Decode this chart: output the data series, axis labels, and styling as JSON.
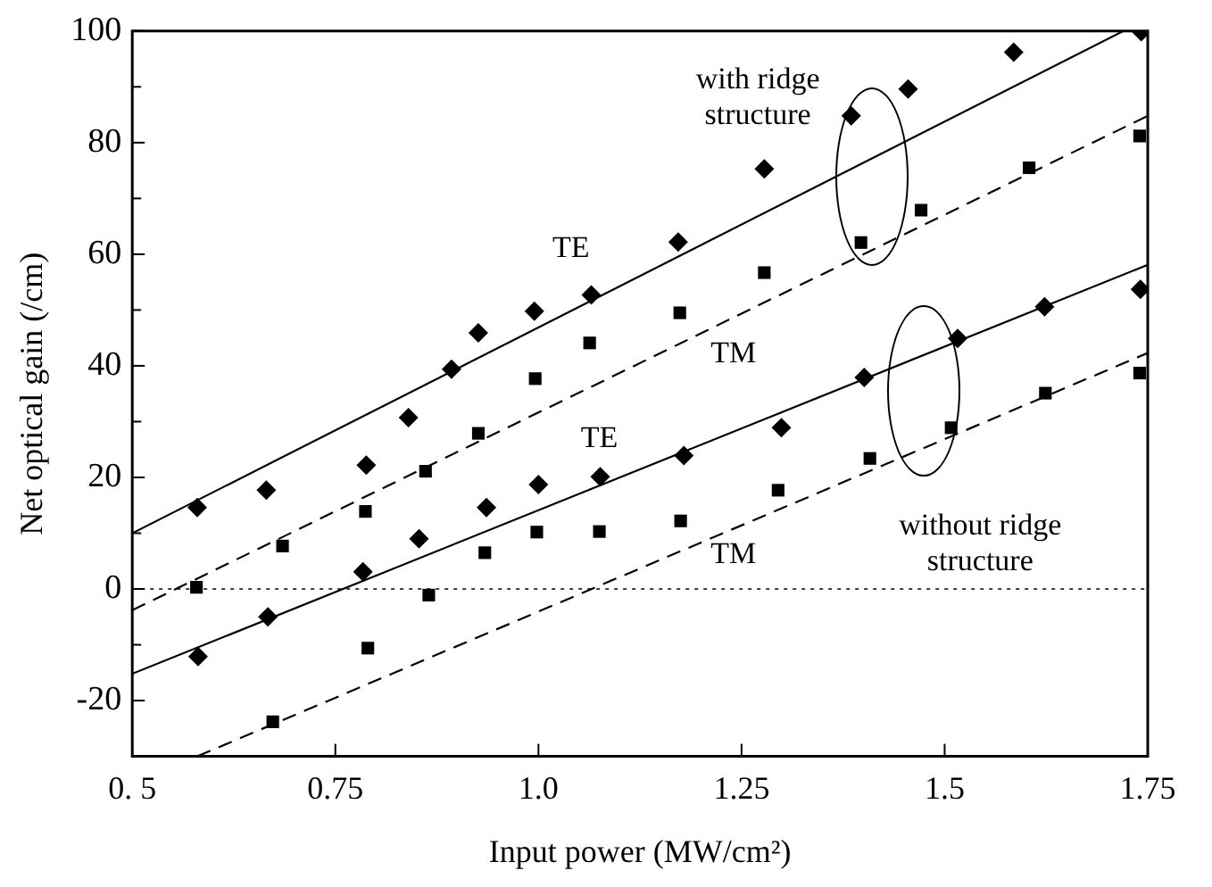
{
  "chart_data": {
    "type": "scatter",
    "xlabel": "Input power (MW/cm²)",
    "ylabel": "Net optical gain (/cm)",
    "xlim": [
      0.5,
      1.75
    ],
    "xticks": [
      {
        "value": 0.5,
        "label": "0. 5"
      },
      0.75,
      {
        "value": 1,
        "label": "1.0"
      },
      1.25,
      1.5,
      1.75
    ],
    "ylim": [
      -30,
      100
    ],
    "yticks": [
      -20,
      {
        "value": -10,
        "label": null
      },
      0,
      {
        "value": 10,
        "label": null
      },
      20,
      {
        "value": 30,
        "label": null
      },
      40,
      {
        "value": 50,
        "label": null
      },
      60,
      {
        "value": 70,
        "label": null
      },
      80,
      {
        "value": 90,
        "label": null
      },
      100
    ],
    "grid": false,
    "legend": false,
    "ref_lines": [
      {
        "axis": "y",
        "value": 0,
        "line_style": "dotted",
        "color": "#000000"
      }
    ],
    "annotations": [
      "TE",
      "TM",
      "TE",
      "TM",
      "with ridge structure",
      "without ridge structure"
    ],
    "series": [
      {
        "type": "scatter",
        "marker": "diamond",
        "color": "#000000",
        "x": [
          0.58,
          0.665,
          0.788,
          0.84,
          0.893,
          0.926,
          0.995,
          1.065,
          1.172,
          1.278,
          1.385,
          1.455,
          1.585,
          1.742
        ],
        "values": [
          14.6,
          17.7,
          22.2,
          30.7,
          39.4,
          45.9,
          49.8,
          52.7,
          62.2,
          75.3,
          84.8,
          89.6,
          96.2,
          99.9
        ]
      },
      {
        "type": "scatter",
        "marker": "square",
        "color": "#000000",
        "x": [
          0.579,
          0.685,
          0.787,
          0.861,
          0.926,
          0.996,
          1.063,
          1.174,
          1.278,
          1.397,
          1.471,
          1.604,
          1.74
        ],
        "values": [
          0.3,
          7.7,
          13.9,
          21.1,
          27.9,
          37.7,
          44.1,
          49.5,
          56.7,
          62.1,
          67.9,
          75.5,
          81.2
        ]
      },
      {
        "type": "scatter",
        "marker": "diamond",
        "color": "#000000",
        "x": [
          0.581,
          0.667,
          0.784,
          0.853,
          0.936,
          1.0,
          1.076,
          1.179,
          1.299,
          1.401,
          1.516,
          1.623,
          1.741
        ],
        "values": [
          -12.1,
          -5.0,
          3.1,
          9.0,
          14.6,
          18.7,
          20.1,
          23.9,
          28.9,
          37.9,
          44.9,
          50.6,
          53.7
        ]
      },
      {
        "type": "scatter",
        "marker": "square",
        "color": "#000000",
        "x": [
          0.673,
          0.79,
          0.865,
          0.934,
          0.998,
          1.075,
          1.175,
          1.295,
          1.408,
          1.508,
          1.624,
          1.74
        ],
        "values": [
          -23.8,
          -10.6,
          -1.1,
          6.5,
          10.2,
          10.3,
          12.2,
          17.7,
          23.4,
          28.9,
          35.1,
          38.7
        ]
      },
      {
        "type": "line",
        "marker": "none",
        "line_style": "solid",
        "color": "#000000",
        "x": [
          0.5,
          1.72
        ],
        "values": [
          10,
          100
        ]
      },
      {
        "type": "line",
        "marker": "none",
        "line_style": "dashed",
        "color": "#000000",
        "x": [
          0.5,
          1.75
        ],
        "values": [
          -3.8,
          84.8
        ]
      },
      {
        "type": "line",
        "marker": "none",
        "line_style": "solid",
        "color": "#000000",
        "x": [
          0.5,
          1.75
        ],
        "values": [
          -15.2,
          58.1
        ]
      },
      {
        "type": "line",
        "marker": "none",
        "line_style": "dashed",
        "color": "#000000",
        "x": [
          0.58,
          1.75
        ],
        "values": [
          -30,
          42.3
        ]
      }
    ]
  }
}
